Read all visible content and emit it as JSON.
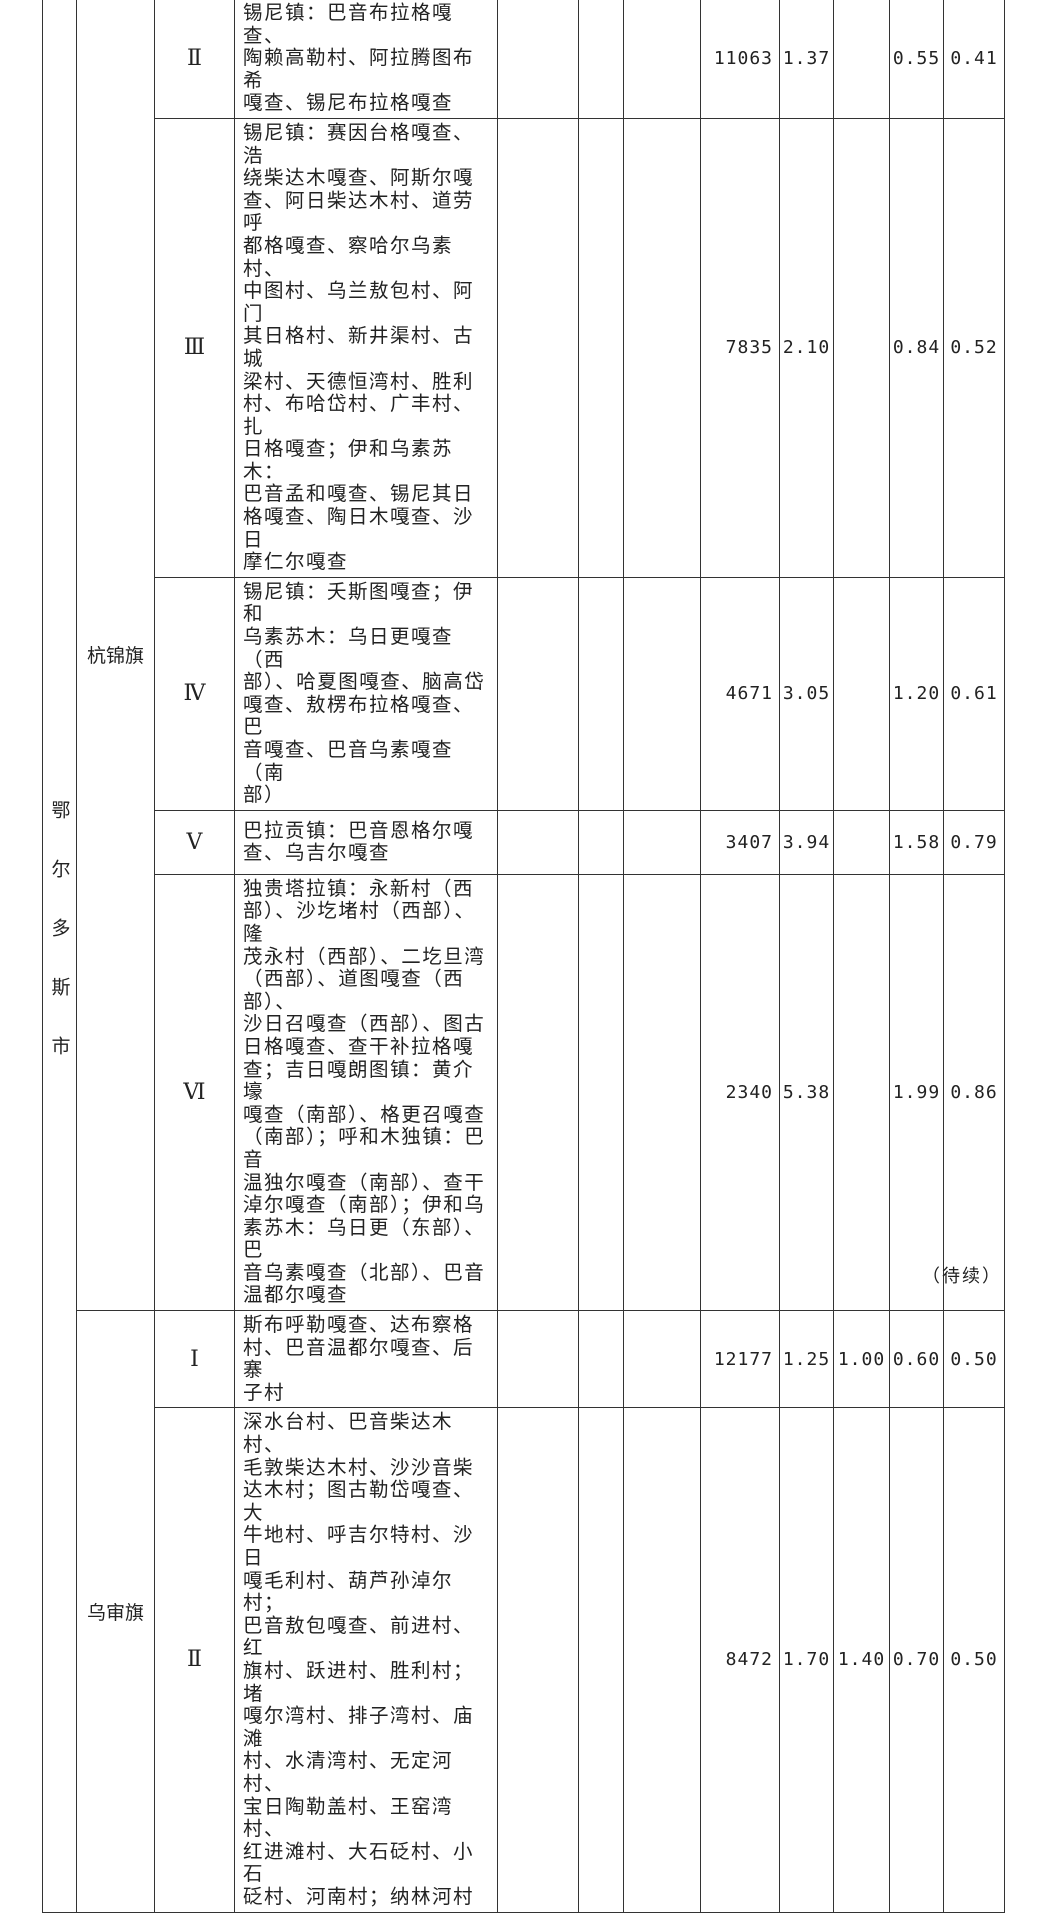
{
  "city": "鄂尔多斯市",
  "city_chars": [
    "鄂",
    "尔",
    "多",
    "斯",
    "市"
  ],
  "groups": [
    {
      "county": "杭锦旗",
      "rows": [
        {
          "grade": "Ⅱ",
          "areas": "锡尼镇：巴音布拉格嘎查、\n陶赖高勒村、阿拉腾图布希\n嘎查、锡尼布拉格嘎查",
          "v1": "11063",
          "v2": "1.37",
          "v3": "",
          "v4": "0.55",
          "v5": "0.41"
        },
        {
          "grade": "Ⅲ",
          "areas": "锡尼镇：赛因台格嘎查、浩\n绕柴达木嘎查、阿斯尔嘎\n查、阿日柴达木村、道劳呼\n都格嘎查、察哈尔乌素村、\n中图村、乌兰敖包村、阿门\n其日格村、新井渠村、古城\n梁村、天德恒湾村、胜利\n村、布哈岱村、广丰村、扎\n日格嘎查；伊和乌素苏木：\n巴音孟和嘎查、锡尼其日\n格嘎查、陶日木嘎查、沙日\n摩仁尔嘎查",
          "v1": "7835",
          "v2": "2.10",
          "v3": "",
          "v4": "0.84",
          "v5": "0.52"
        },
        {
          "grade": "Ⅳ",
          "areas": "锡尼镇：夭斯图嘎查；伊和\n乌素苏木：乌日更嘎查（西\n部）、哈夏图嘎查、脑高岱\n嘎查、敖楞布拉格嘎查、巴\n音嘎查、巴音乌素嘎查（南\n部）",
          "v1": "4671",
          "v2": "3.05",
          "v3": "",
          "v4": "1.20",
          "v5": "0.61"
        },
        {
          "grade": "Ⅴ",
          "areas": "巴拉贡镇：巴音恩格尔嘎\n查、乌吉尔嘎查",
          "v1": "3407",
          "v2": "3.94",
          "v3": "",
          "v4": "1.58",
          "v5": "0.79"
        },
        {
          "grade": "Ⅵ",
          "areas": "独贵塔拉镇：永新村（西\n部）、沙圪堵村（西部）、隆\n茂永村（西部）、二圪旦湾\n（西部）、道图嘎查（西部）、\n沙日召嘎查（西部）、图古\n日格嘎查、查干补拉格嘎\n查；吉日嘎朗图镇：黄介壕\n嘎查（南部）、格更召嘎查\n（南部）；呼和木独镇：巴音\n温独尔嘎查（南部）、查干\n淖尔嘎查（南部）；伊和乌\n素苏木：乌日更（东部）、巴\n音乌素嘎查（北部）、巴音\n温都尔嘎查",
          "v1": "2340",
          "v2": "5.38",
          "v3": "",
          "v4": "1.99",
          "v5": "0.86"
        }
      ]
    },
    {
      "county": "乌审旗",
      "rows": [
        {
          "grade": "Ⅰ",
          "areas": "斯布呼勒嘎查、达布察格\n村、巴音温都尔嘎查、后寨\n子村",
          "v1": "12177",
          "v2": "1.25",
          "v3": "1.00",
          "v4": "0.60",
          "v5": "0.50"
        },
        {
          "grade": "Ⅱ",
          "areas": "深水台村、巴音柴达木村、\n毛敦柴达木村、沙沙音柴\n达木村；图古勒岱嘎查、大\n牛地村、呼吉尔特村、沙日\n嘎毛利村、葫芦孙淖尔村；\n巴音敖包嘎查、前进村、红\n旗村、跃进村、胜利村；堵\n嘎尔湾村、排子湾村、庙滩\n村、水清湾村、无定河村、\n宝日陶勒盖村、王窑湾村、\n红进滩村、大石砭村、小石\n砭村、河南村；纳林河村",
          "v1": "8472",
          "v2": "1.70",
          "v3": "1.40",
          "v4": "0.70",
          "v5": "0.50"
        }
      ]
    }
  ],
  "continued_label": "（待续）"
}
